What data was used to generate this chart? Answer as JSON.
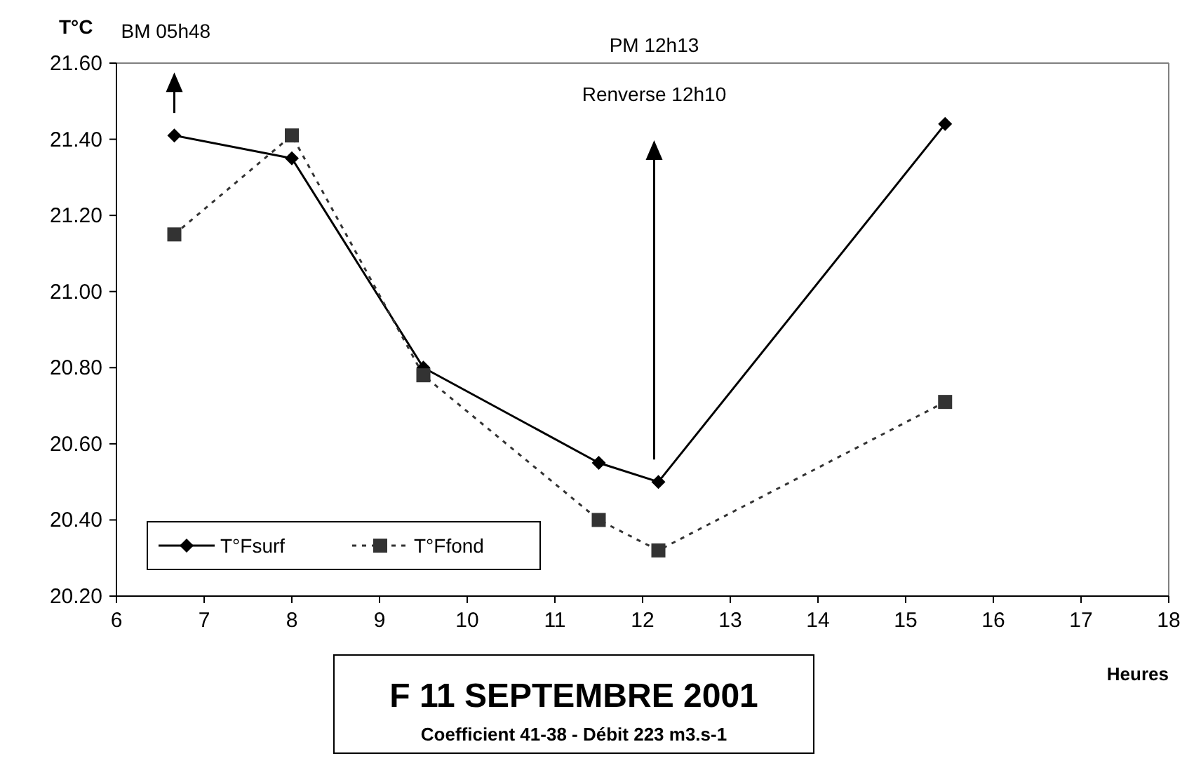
{
  "chart_data": {
    "type": "line",
    "title": "F 11 SEPTEMBRE 2001",
    "subtitle": "Coefficient 41-38 - Débit 223 m3.s-1",
    "xlabel": "Heures",
    "ylabel": "T°C",
    "x": [
      6.66,
      8,
      9.5,
      11.5,
      12.18,
      15.45
    ],
    "series": [
      {
        "name": "T°Fsurf",
        "color": "#000000",
        "values": [
          21.41,
          21.35,
          20.8,
          20.55,
          20.5,
          21.44
        ],
        "marker": "diamond",
        "line_style": "solid"
      },
      {
        "name": "T°Ffond",
        "color": "#333333",
        "values": [
          21.15,
          21.41,
          20.78,
          20.4,
          20.32,
          20.71
        ],
        "marker": "square",
        "line_style": "dotted"
      }
    ],
    "xlim": [
      6,
      18
    ],
    "xticks": [
      6,
      7,
      8,
      9,
      10,
      11,
      12,
      13,
      14,
      15,
      16,
      17,
      18
    ],
    "ylim": [
      20.2,
      21.6
    ],
    "yticks": [
      {
        "value": 20.2,
        "label": "20.20"
      },
      {
        "value": 20.4,
        "label": "20.40"
      },
      {
        "value": 20.6,
        "label": "20.60"
      },
      {
        "value": 20.8,
        "label": "20.80"
      },
      {
        "value": 21.0,
        "label": "21.00"
      },
      {
        "value": 21.2,
        "label": "21.20"
      },
      {
        "value": 21.4,
        "label": "21.40"
      },
      {
        "value": 21.6,
        "label": "21.60"
      }
    ],
    "grid": false,
    "legend": "bottom left",
    "annotations": [
      "BM 05h48",
      "PM 12h13",
      "Renverse 12h10"
    ]
  }
}
